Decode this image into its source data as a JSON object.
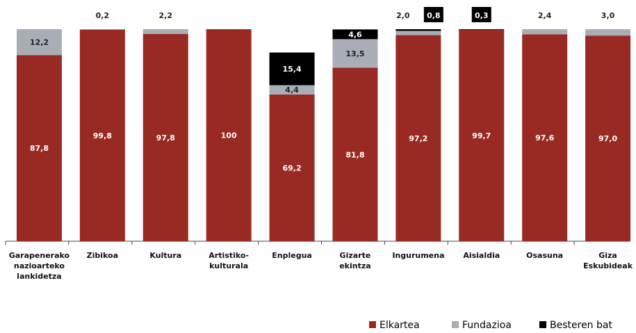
{
  "chart_data": {
    "type": "stacked_bar",
    "categories": [
      "Garapenerako\nnazioarteko\nlankidetza",
      "Zibikoa",
      "Kultura",
      "Artistiko-\nkulturala",
      "Enplegua",
      "Gizarte\nekintza",
      "Ingurumena",
      "Aisialdia",
      "Osasuna",
      "Giza\nEskubideak"
    ],
    "ylim": [
      0,
      100
    ],
    "legend": "bottom-right",
    "series": [
      {
        "name": "Elkartea",
        "color": "#992a23",
        "values": [
          87.8,
          99.8,
          97.8,
          100,
          69.2,
          81.8,
          97.2,
          99.7,
          97.6,
          97.0
        ],
        "value_labels": [
          "87,8",
          "99,8",
          "97,8",
          "100",
          "69,2",
          "81,8",
          "97,2",
          "99,7",
          "97,6",
          "97,0"
        ]
      },
      {
        "name": "Fundazioa",
        "color": "#a9adb6",
        "values": [
          12.2,
          0.2,
          2.2,
          0,
          4.4,
          13.5,
          2.0,
          0,
          2.4,
          3.0
        ],
        "value_labels": [
          "12,2",
          "0,2",
          "2,2",
          null,
          "4,4",
          "13,5",
          "2,0",
          null,
          "2,4",
          "3,0"
        ]
      },
      {
        "name": "Besteren bat",
        "color": "#000000",
        "values": [
          0,
          0,
          0,
          0,
          15.4,
          4.6,
          0.8,
          0.3,
          0,
          0
        ],
        "value_labels": [
          null,
          null,
          null,
          null,
          "15,4",
          "4,6",
          "0,8",
          "0,3",
          null,
          null
        ]
      }
    ]
  }
}
